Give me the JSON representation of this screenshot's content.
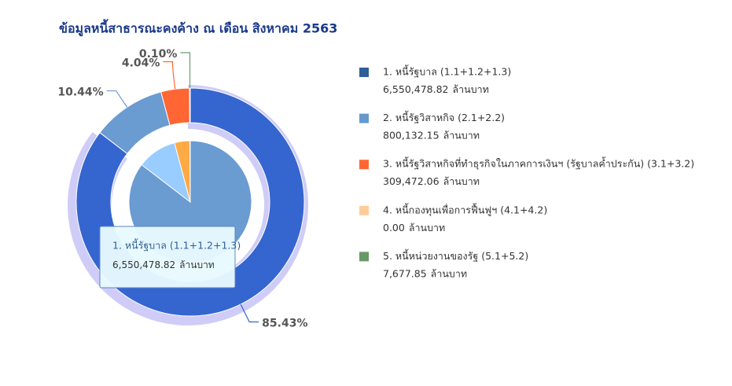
{
  "chart_data": {
    "type": "pie",
    "title": "ข้อมูลหนี้สาธารณะคงค้าง ณ เดือน สิงหาคม 2563",
    "categories": [
      "1. หนี้รัฐบาล (1.1+1.2+1.3)",
      "2. หนี้รัฐวิสาหกิจ (2.1+2.2)",
      "3. หนี้รัฐวิสาหกิจที่ทำธุรกิจในภาคการเงินฯ (รัฐบาลค้ำประกัน) (3.1+3.2)",
      "4. หนี้กองทุนเพื่อการฟื้นฟูฯ (4.1+4.2)",
      "5. หนี้หน่วยงานของรัฐ (5.1+5.2)"
    ],
    "values": [
      6550478.82,
      800132.15,
      309472.06,
      0,
      7677.85
    ],
    "value_labels": [
      "6,550,478.82",
      "800,132.15",
      "309,472.06",
      "0.00",
      "7,677.85"
    ],
    "unit": "ล้านบาท",
    "percents": [
      85.43,
      10.44,
      4.04,
      0,
      0.1
    ],
    "percent_labels": [
      "85.43%",
      "10.44%",
      "4.04%",
      null,
      "0.10%"
    ],
    "colors": [
      "#3565cf",
      "#6a9bd1",
      "#ff6633",
      "#ffc999",
      "#6a9e6f"
    ],
    "legend_colors": [
      "#2f5f98",
      "#6699cc",
      "#ff6633",
      "#ffcc99",
      "#669966"
    ],
    "inner_colors": [
      "#6a9bd1",
      "#99ccff",
      "#ffaa44",
      "#ffcc99",
      "#6a9e6f"
    ],
    "legend": "right"
  }
}
